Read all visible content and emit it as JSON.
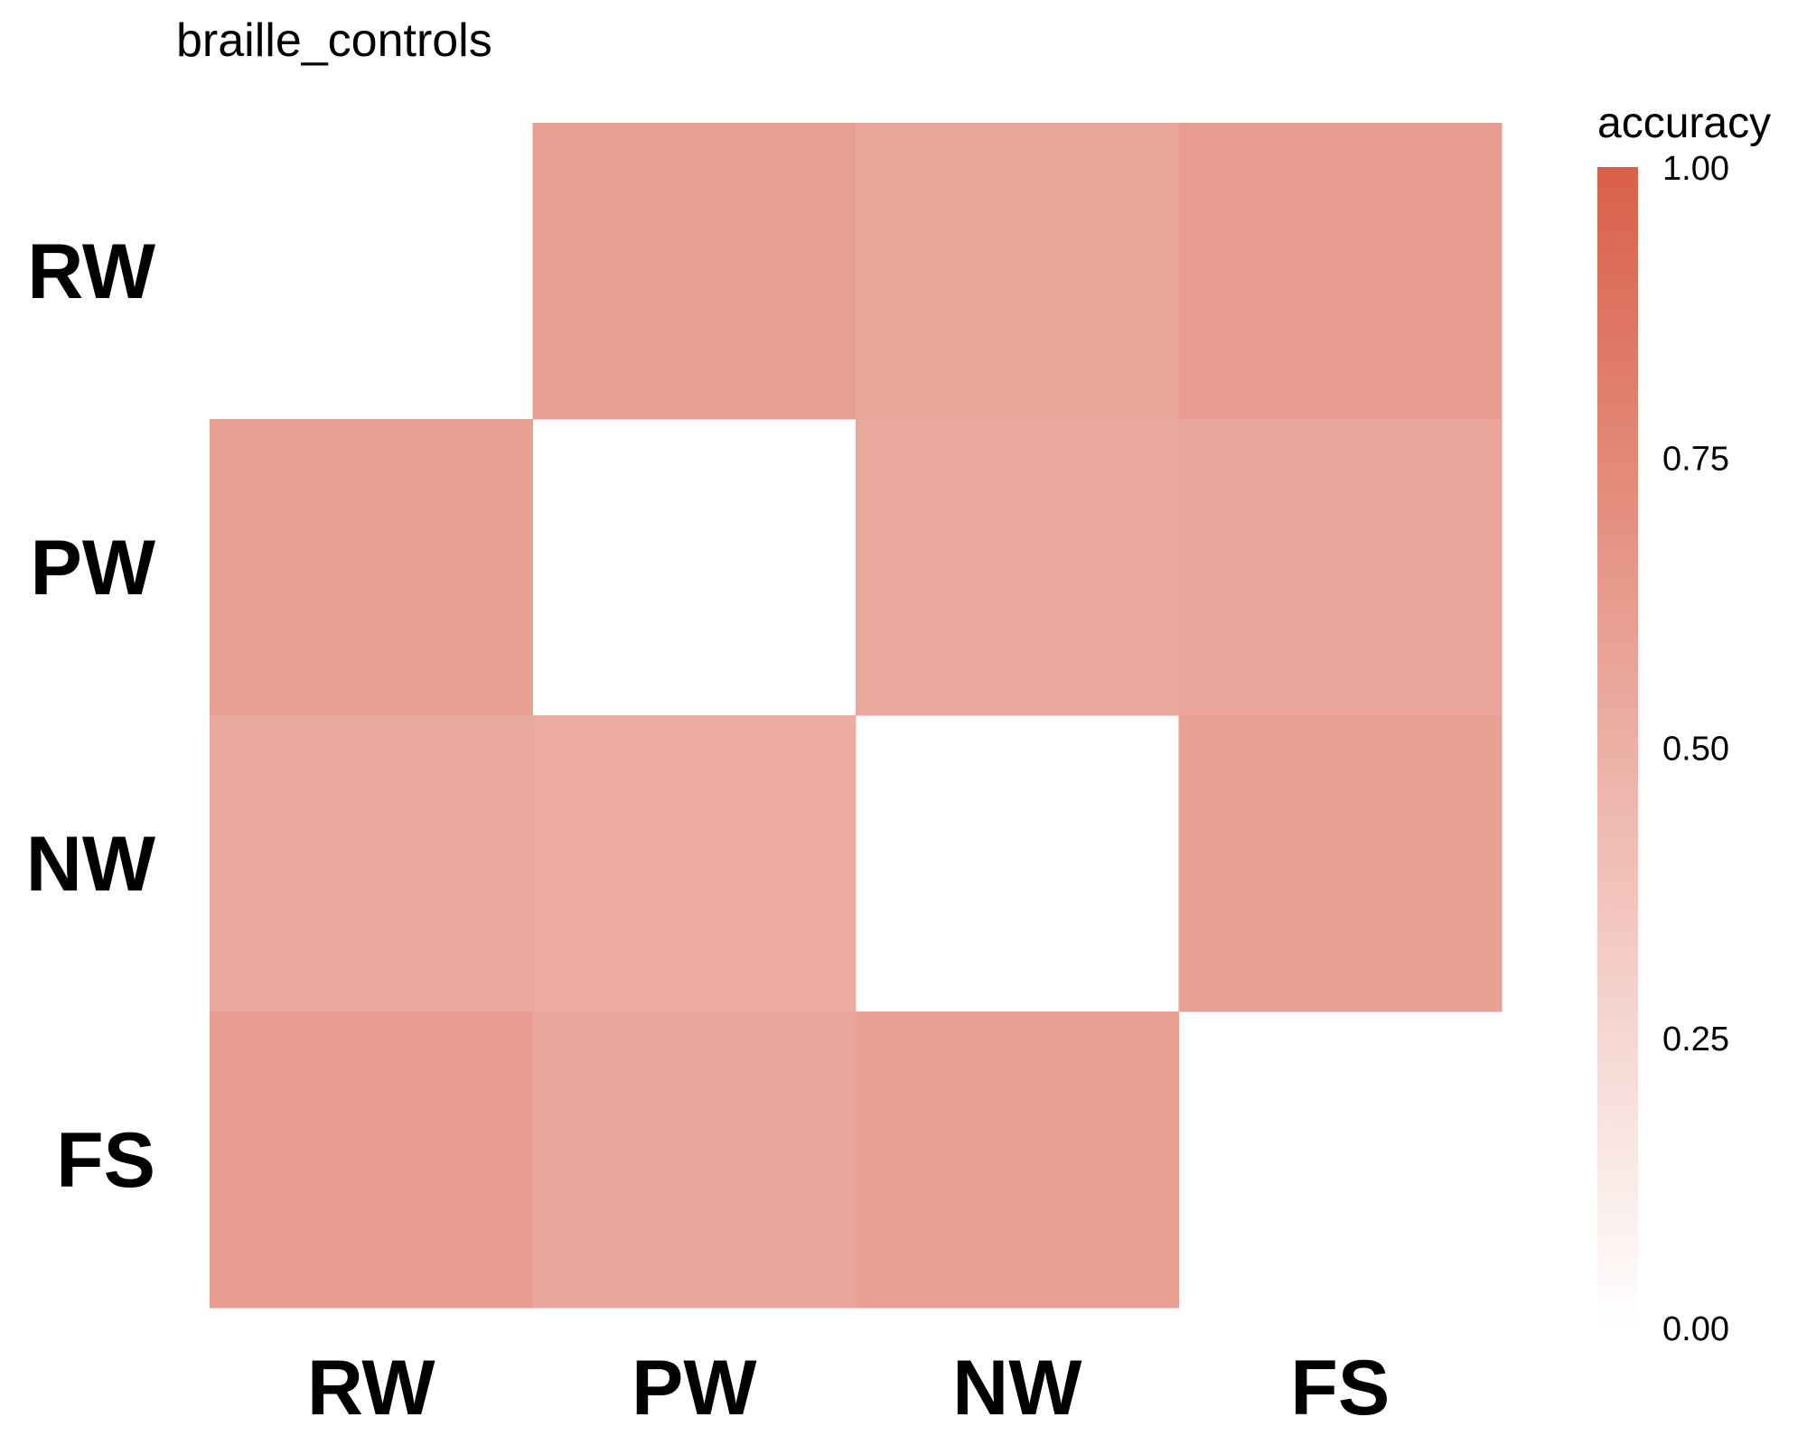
{
  "chart_data": {
    "type": "heatmap",
    "title": "braille_controls",
    "xlabel": "",
    "ylabel": "",
    "x_categories": [
      "RW",
      "PW",
      "NW",
      "FS"
    ],
    "y_categories": [
      "RW",
      "PW",
      "NW",
      "FS"
    ],
    "values": [
      [
        null,
        0.6,
        0.55,
        0.62
      ],
      [
        0.6,
        null,
        0.54,
        0.56
      ],
      [
        0.54,
        0.53,
        null,
        0.6
      ],
      [
        0.62,
        0.56,
        0.6,
        null
      ]
    ],
    "legend": {
      "title": "accuracy",
      "ticks": [
        "0.00",
        "0.25",
        "0.50",
        "0.75",
        "1.00"
      ],
      "range": [
        0,
        1
      ],
      "low_color": "#ffffff",
      "high_color": "#d9604a",
      "placement": "right"
    }
  }
}
